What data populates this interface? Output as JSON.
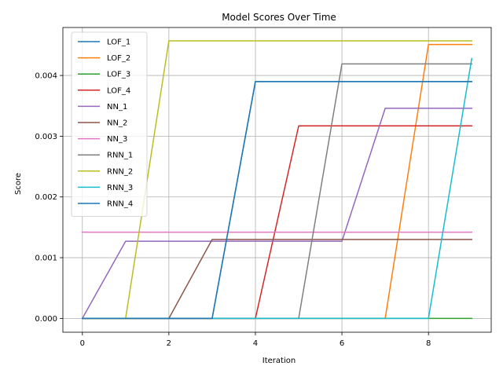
{
  "chart_data": {
    "type": "line",
    "title": "Model Scores Over Time",
    "xlabel": "Iteration",
    "ylabel": "Score",
    "xlim": [
      -0.45,
      9.45
    ],
    "ylim": [
      -0.000228,
      0.00479
    ],
    "x": [
      0,
      1,
      2,
      3,
      4,
      5,
      6,
      7,
      8,
      9
    ],
    "xticks": [
      0,
      2,
      4,
      6,
      8
    ],
    "xtick_labels": [
      "0",
      "2",
      "4",
      "6",
      "8"
    ],
    "yticks": [
      0,
      0.001,
      0.002,
      0.003,
      0.004
    ],
    "ytick_labels": [
      "0.000",
      "0.001",
      "0.002",
      "0.003",
      "0.004"
    ],
    "grid": true,
    "legend_position": "top-left",
    "series": [
      {
        "name": "LOF_1",
        "color": "#1f77b4",
        "values": [
          0,
          0,
          0,
          0,
          0.0039,
          0.0039,
          0.0039,
          0.0039,
          0.0039,
          0.0039
        ]
      },
      {
        "name": "LOF_2",
        "color": "#ff7f0e",
        "values": [
          0,
          0,
          0,
          0,
          0,
          0,
          0,
          0,
          0.00451,
          0.00451
        ]
      },
      {
        "name": "LOF_3",
        "color": "#2ca02c",
        "values": [
          0,
          0,
          0,
          0,
          0,
          0,
          0,
          0,
          0,
          0
        ]
      },
      {
        "name": "LOF_4",
        "color": "#d62728",
        "values": [
          0,
          0,
          0,
          0,
          0,
          0.00317,
          0.00317,
          0.00317,
          0.00317,
          0.00317
        ]
      },
      {
        "name": "NN_1",
        "color": "#9467bd",
        "values": [
          0,
          0.00127,
          0.00127,
          0.00127,
          0.00127,
          0.00127,
          0.00127,
          0.00346,
          0.00346,
          0.00346
        ]
      },
      {
        "name": "NN_2",
        "color": "#8c564b",
        "values": [
          0,
          0,
          0,
          0.0013,
          0.0013,
          0.0013,
          0.0013,
          0.0013,
          0.0013,
          0.0013
        ]
      },
      {
        "name": "NN_3",
        "color": "#e377c2",
        "values": [
          0.00142,
          0.00142,
          0.00142,
          0.00142,
          0.00142,
          0.00142,
          0.00142,
          0.00142,
          0.00142,
          0.00142
        ]
      },
      {
        "name": "RNN_1",
        "color": "#7f7f7f",
        "values": [
          0,
          0,
          0,
          0,
          0,
          0,
          0.00419,
          0.00419,
          0.00419,
          0.00419
        ]
      },
      {
        "name": "RNN_2",
        "color": "#bcbd22",
        "values": [
          0,
          0,
          0.00457,
          0.00457,
          0.00457,
          0.00457,
          0.00457,
          0.00457,
          0.00457,
          0.00457
        ]
      },
      {
        "name": "RNN_3",
        "color": "#17becf",
        "values": [
          0,
          0,
          0,
          0,
          0,
          0,
          0,
          0,
          0,
          0.00428
        ]
      },
      {
        "name": "RNN_4",
        "color": "#1f77b4",
        "values": [
          0,
          0,
          0,
          0,
          0.0039,
          0.0039,
          0.0039,
          0.0039,
          0.0039,
          0.0039
        ]
      }
    ]
  }
}
